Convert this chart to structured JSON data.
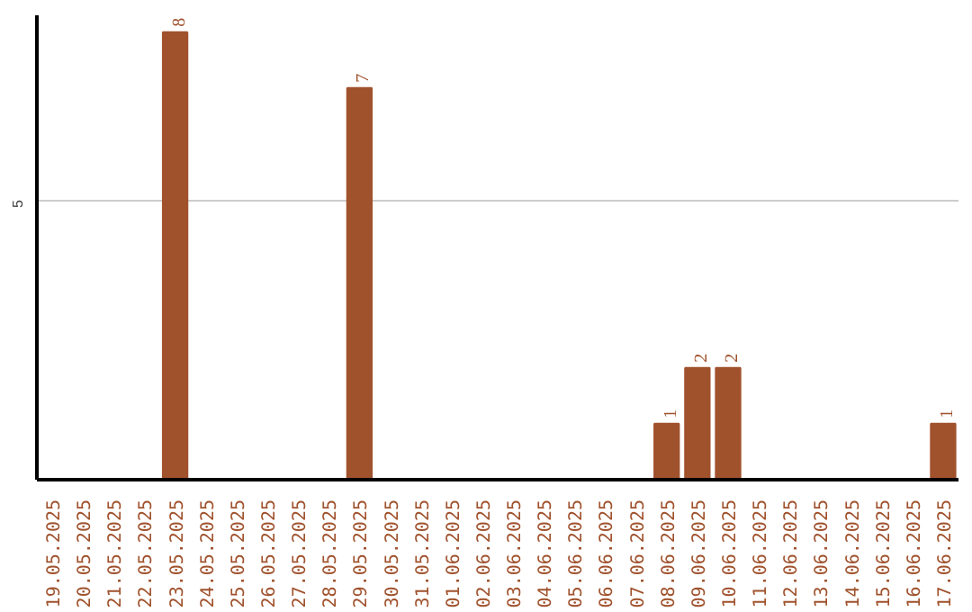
{
  "chart_data": {
    "type": "bar",
    "categories": [
      "19.05.2025",
      "20.05.2025",
      "21.05.2025",
      "22.05.2025",
      "23.05.2025",
      "24.05.2025",
      "25.05.2025",
      "26.05.2025",
      "27.05.2025",
      "28.05.2025",
      "29.05.2025",
      "30.05.2025",
      "31.05.2025",
      "01.06.2025",
      "02.06.2025",
      "03.06.2025",
      "04.06.2025",
      "05.06.2025",
      "06.06.2025",
      "07.06.2025",
      "08.06.2025",
      "09.06.2025",
      "10.06.2025",
      "11.06.2025",
      "12.06.2025",
      "13.06.2025",
      "14.06.2025",
      "15.06.2025",
      "16.06.2025",
      "17.06.2025"
    ],
    "values": [
      0,
      0,
      0,
      0,
      8,
      0,
      0,
      0,
      0,
      0,
      7,
      0,
      0,
      0,
      0,
      0,
      0,
      0,
      0,
      0,
      1,
      2,
      2,
      0,
      0,
      0,
      0,
      0,
      0,
      1
    ],
    "value_labels": [
      null,
      null,
      null,
      null,
      "8",
      null,
      null,
      null,
      null,
      null,
      "7",
      null,
      null,
      null,
      null,
      null,
      null,
      null,
      null,
      null,
      "1",
      "2",
      "2",
      null,
      null,
      null,
      null,
      null,
      null,
      "1"
    ],
    "color": "#a0522d",
    "ylim": [
      0,
      8.3
    ],
    "yticks": [
      5
    ],
    "grid": "y"
  }
}
